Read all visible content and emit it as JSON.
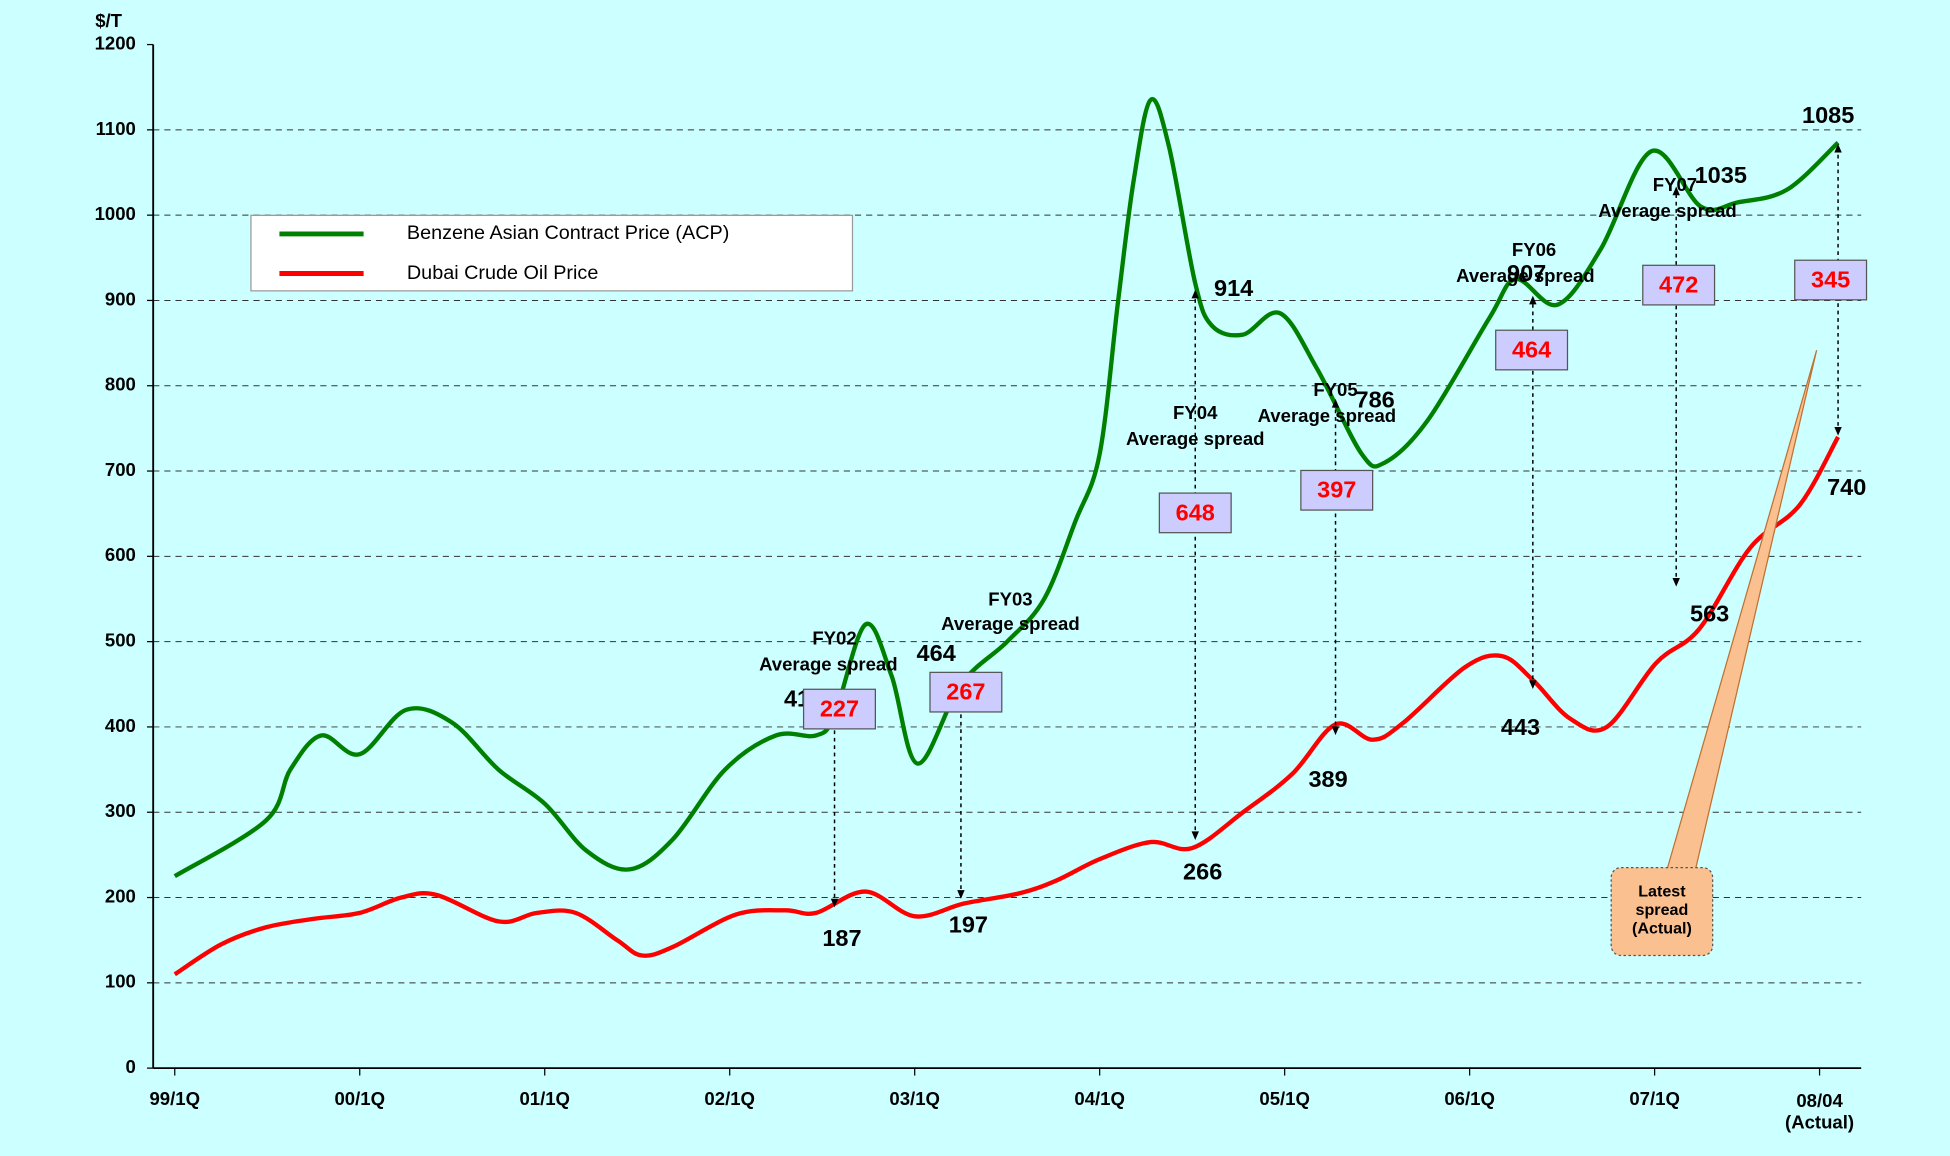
{
  "chart_data": {
    "type": "line",
    "y_label": "$/T",
    "xlim": [
      -1.4,
      109.4
    ],
    "ylim": [
      0,
      1200
    ],
    "xticks": [
      {
        "value": 0,
        "label": "99/1Q"
      },
      {
        "value": 12,
        "label": "00/1Q"
      },
      {
        "value": 24,
        "label": "01/1Q"
      },
      {
        "value": 36,
        "label": "02/1Q"
      },
      {
        "value": 48,
        "label": "03/1Q"
      },
      {
        "value": 60,
        "label": "04/1Q"
      },
      {
        "value": 72,
        "label": "05/1Q"
      },
      {
        "value": 84,
        "label": "06/1Q"
      },
      {
        "value": 96,
        "label": "07/1Q"
      },
      {
        "value": 106.7,
        "label": "08/04 (Actual)"
      }
    ],
    "yticks": [
      0,
      100,
      200,
      300,
      400,
      500,
      600,
      700,
      800,
      900,
      1000,
      1100,
      1200
    ],
    "grid": true,
    "legend": "upper left",
    "series": [
      {
        "name": "Benzene Asian Contract Price (ACP)",
        "color": "#008000",
        "x": [
          0,
          5.9,
          7.5,
          9.5,
          12,
          15,
          18,
          21,
          24,
          26.7,
          29.5,
          32.3,
          35.7,
          39,
          41.6,
          42.8,
          44.8,
          46.5,
          48.2,
          51,
          54,
          56.4,
          58.4,
          60,
          61.2,
          62.2,
          63.3,
          64.5,
          66.2,
          67.3,
          69.3,
          71.7,
          74.1,
          77,
          78.5,
          81.3,
          85.3,
          87,
          89.7,
          92.5,
          95.8,
          99,
          101.4,
          104.6,
          107.9
        ],
        "values": [
          225,
          290,
          350,
          390,
          368,
          420,
          405,
          350,
          310,
          255,
          233,
          268,
          350,
          390,
          390,
          414,
          520,
          460,
          357,
          450,
          500,
          550,
          640,
          720,
          900,
          1040,
          1135,
          1080,
          920,
          870,
          860,
          885,
          820,
          720,
          710,
          760,
          880,
          925,
          895,
          960,
          1075,
          1010,
          1015,
          1030,
          1085
        ]
      },
      {
        "name": "Dubai Crude Oil Price",
        "color": "#ff0000",
        "x": [
          0,
          3,
          5.9,
          9,
          12,
          14.7,
          17,
          21,
          23.5,
          26,
          28.7,
          30.3,
          32.3,
          36.4,
          39.6,
          41.6,
          44.8,
          48,
          51.2,
          54.8,
          57.2,
          60,
          63.3,
          66,
          69.3,
          72.5,
          75.3,
          77.7,
          79.7,
          83.7,
          86.1,
          88.1,
          90.5,
          92.9,
          96.1,
          98.9,
          102.2,
          105.4,
          107.9
        ],
        "values": [
          110,
          145,
          165,
          175,
          182,
          200,
          203,
          172,
          182,
          182,
          150,
          132,
          142,
          180,
          185,
          182,
          207,
          178,
          193,
          205,
          220,
          245,
          265,
          258,
          300,
          345,
          403,
          385,
          405,
          470,
          483,
          455,
          410,
          400,
          475,
          515,
          610,
          660,
          740
        ]
      }
    ],
    "spreads": [
      {
        "name": "FY02",
        "text": "Average spread",
        "value": 227,
        "x": 42.8,
        "low": 187,
        "high": 414
      },
      {
        "name": "FY03",
        "text": "Average spread",
        "value": 267,
        "x": 51,
        "low": 197,
        "high": 464
      },
      {
        "name": "FY04",
        "text": "Average spread",
        "value": 648,
        "x": 66.2,
        "low": 266,
        "high": 914
      },
      {
        "name": "FY05",
        "text": "Average spread",
        "value": 397,
        "x": 75.3,
        "low": 389,
        "high": 786
      },
      {
        "name": "FY06",
        "text": "Average spread",
        "value": 464,
        "x": 88.1,
        "low": 443,
        "high": 907
      },
      {
        "name": "FY07",
        "text": "Average spread",
        "value": 472,
        "x": 97.4,
        "low": 563,
        "high": 1035
      },
      {
        "value": 345,
        "x": 107.9,
        "low": 740,
        "high": 1085
      }
    ],
    "callout": "Latest spread (Actual)"
  }
}
